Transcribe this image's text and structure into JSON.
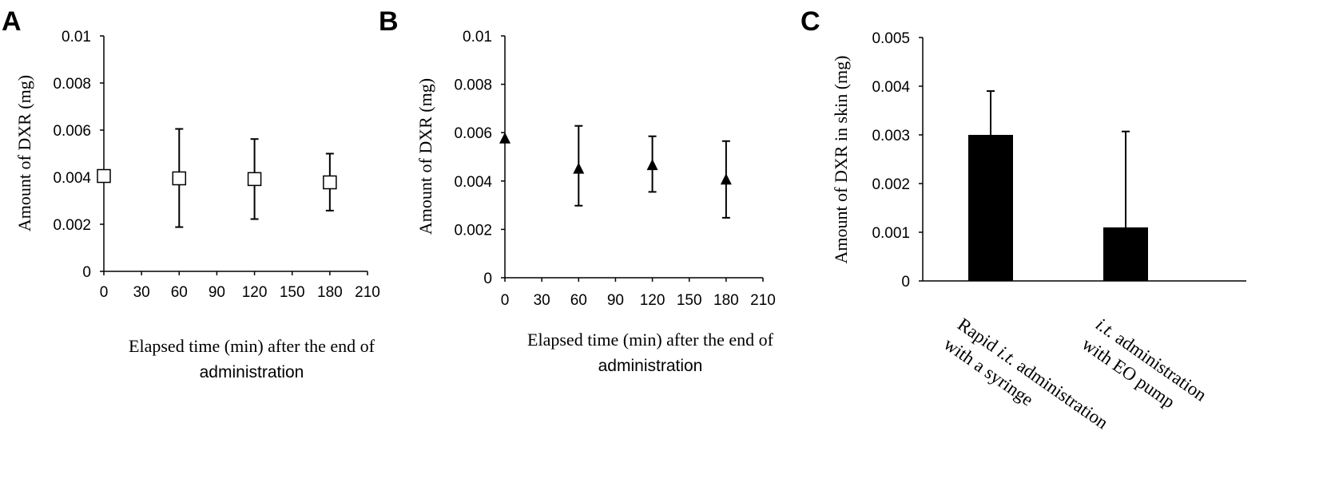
{
  "chart_data": [
    {
      "panel_label": "A",
      "type": "scatter",
      "marker": "open-square",
      "x": [
        0,
        60,
        120,
        180
      ],
      "y": [
        0.00405,
        0.00395,
        0.00392,
        0.00378
      ],
      "error_upper": [
        0.00405,
        0.00605,
        0.00562,
        0.005
      ],
      "error_lower": [
        0.00405,
        0.00188,
        0.00222,
        0.00258
      ],
      "xlim": [
        0,
        210
      ],
      "ylim": [
        0,
        0.01
      ],
      "xticks": [
        "0",
        "30",
        "60",
        "90",
        "120",
        "150",
        "180",
        "210"
      ],
      "yticks": [
        "0",
        "0.002",
        "0.004",
        "0.006",
        "0.008",
        "0.01"
      ],
      "xlabel_lines": [
        "Elapsed time (min) after the end of",
        "administration"
      ],
      "ylabel": "Amount of DXR (mg)",
      "grid": false
    },
    {
      "panel_label": "B",
      "type": "scatter",
      "marker": "filled-triangle",
      "x": [
        0,
        60,
        120,
        180
      ],
      "y": [
        0.00575,
        0.0045,
        0.00465,
        0.00405
      ],
      "error_upper": [
        0.00575,
        0.00628,
        0.00585,
        0.00565
      ],
      "error_lower": [
        0.00575,
        0.00298,
        0.00355,
        0.00248
      ],
      "xlim": [
        0,
        210
      ],
      "ylim": [
        0,
        0.01
      ],
      "xticks": [
        "0",
        "30",
        "60",
        "90",
        "120",
        "150",
        "180",
        "210"
      ],
      "yticks": [
        "0",
        "0.002",
        "0.004",
        "0.006",
        "0.008",
        "0.01"
      ],
      "xlabel_lines": [
        "Elapsed time (min) after the end of",
        "administration"
      ],
      "ylabel": "Amount of DXR (mg)",
      "grid": false
    },
    {
      "panel_label": "C",
      "type": "bar",
      "categories": [
        {
          "lines": [
            [
              "Rapid ",
              false
            ],
            [
              "i.t.",
              true
            ],
            [
              " administration",
              false
            ]
          ],
          "line2": "with a syringe"
        },
        {
          "lines": [
            [
              "i.t.",
              true
            ],
            [
              " administration",
              false
            ]
          ],
          "line2": "with EO pump"
        }
      ],
      "values": [
        0.003,
        0.0011
      ],
      "error_upper": [
        0.0039,
        0.00307
      ],
      "ylim": [
        0,
        0.005
      ],
      "yticks": [
        "0",
        "0.001",
        "0.002",
        "0.003",
        "0.004",
        "0.005"
      ],
      "ylabel": "Amount of DXR in skin (mg)",
      "bar_color": "#000000",
      "grid": false
    }
  ]
}
